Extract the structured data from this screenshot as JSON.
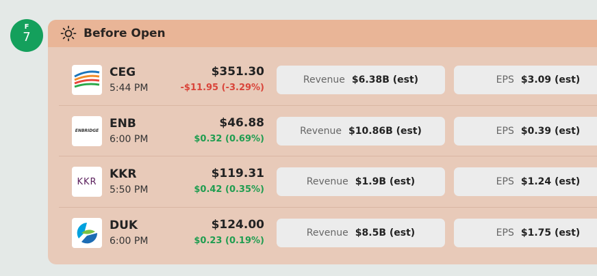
{
  "date_badge": {
    "weekday": "F",
    "day": "7"
  },
  "section": {
    "title": "Before Open"
  },
  "rows": [
    {
      "ticker": "CEG",
      "time": "5:44 PM",
      "price": "$351.30",
      "change": "-$11.95 (-3.29%)",
      "direction": "down",
      "revenue_label": "Revenue",
      "revenue": "$6.38B (est)",
      "eps_label": "EPS",
      "eps": "$3.09 (est)"
    },
    {
      "ticker": "ENB",
      "time": "6:00 PM",
      "price": "$46.88",
      "change": "$0.32 (0.69%)",
      "direction": "up",
      "logo_text": "ENBRIDGE",
      "revenue_label": "Revenue",
      "revenue": "$10.86B (est)",
      "eps_label": "EPS",
      "eps": "$0.39 (est)"
    },
    {
      "ticker": "KKR",
      "time": "5:50 PM",
      "price": "$119.31",
      "change": "$0.42 (0.35%)",
      "direction": "up",
      "logo_text": "KKR",
      "revenue_label": "Revenue",
      "revenue": "$1.9B (est)",
      "eps_label": "EPS",
      "eps": "$1.24 (est)"
    },
    {
      "ticker": "DUK",
      "time": "6:00 PM",
      "price": "$124.00",
      "change": "$0.23 (0.19%)",
      "direction": "up",
      "revenue_label": "Revenue",
      "revenue": "$8.5B (est)",
      "eps_label": "EPS",
      "eps": "$1.75 (est)"
    }
  ]
}
